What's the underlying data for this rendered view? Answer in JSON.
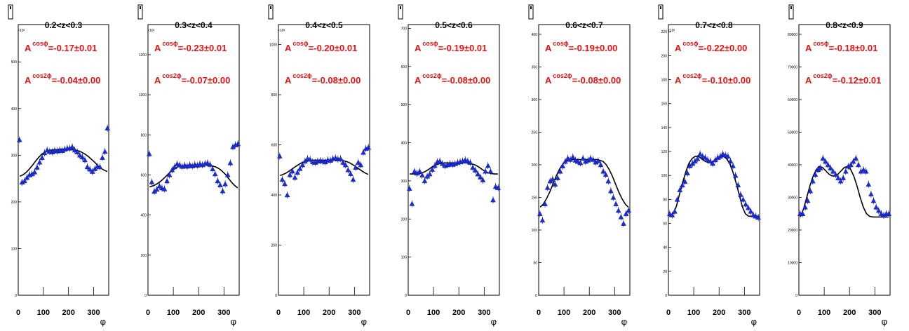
{
  "chart_data": [
    {
      "type": "scatter",
      "title": "0.2<z<0.3",
      "xlabel": "φ",
      "xticks": [
        "0",
        "100",
        "200",
        "300"
      ],
      "ymultiplier": "×10³",
      "yticks": [
        "0",
        "100",
        "200",
        "300",
        "400",
        "500"
      ],
      "yticks_values": [
        0,
        100,
        200,
        300,
        400,
        500
      ],
      "ylim": [
        0,
        580
      ],
      "xlim": [
        0,
        360
      ],
      "annotation": {
        "a_cos_label": "A",
        "a_cos_sup": "cosϕ",
        "a_cos_value": "=-0.17±0.01",
        "a_cos2_label": "A",
        "a_cos2_sup": "cos2ϕ",
        "a_cos2_value": "=-0.04±0.00"
      },
      "x": [
        5,
        15,
        25,
        35,
        45,
        55,
        65,
        75,
        85,
        95,
        105,
        115,
        125,
        135,
        145,
        155,
        165,
        175,
        185,
        195,
        205,
        215,
        225,
        235,
        245,
        255,
        265,
        275,
        285,
        295,
        305,
        315,
        325,
        335,
        345,
        355
      ],
      "y": [
        333,
        242,
        245,
        252,
        258,
        260,
        264,
        274,
        285,
        295,
        305,
        311,
        308,
        307,
        310,
        309,
        311,
        310,
        313,
        315,
        315,
        318,
        311,
        307,
        300,
        296,
        290,
        275,
        270,
        265,
        271,
        276,
        275,
        295,
        308,
        358
      ],
      "fit": [
        255,
        258,
        263,
        270,
        278,
        287,
        295,
        302,
        307,
        310,
        311,
        312,
        312,
        313,
        313,
        313,
        313,
        312,
        311,
        309,
        306,
        302,
        297,
        291,
        285,
        278,
        272,
        268,
        265
      ]
    },
    {
      "type": "scatter",
      "title": "0.3<z<0.4",
      "xlabel": "φ",
      "xticks": [
        "0",
        "100",
        "200",
        "300"
      ],
      "ymultiplier": "×10³",
      "yticks": [
        "0",
        "200",
        "400",
        "600",
        "800",
        "1000",
        "1200"
      ],
      "yticks_values": [
        0,
        200,
        400,
        600,
        800,
        1000,
        1200
      ],
      "ylim": [
        0,
        1350
      ],
      "xlim": [
        0,
        360
      ],
      "annotation": {
        "a_cos_label": "A",
        "a_cos_sup": "cosϕ",
        "a_cos_value": "=-0.23±0.01",
        "a_cos2_label": "A",
        "a_cos2_sup": "cos2ϕ",
        "a_cos2_value": "=-0.07±0.00"
      },
      "x": [
        5,
        15,
        25,
        35,
        45,
        55,
        65,
        75,
        85,
        95,
        105,
        115,
        125,
        135,
        145,
        155,
        165,
        175,
        185,
        195,
        205,
        215,
        225,
        235,
        245,
        255,
        265,
        275,
        285,
        295,
        305,
        315,
        325,
        335,
        345,
        355
      ],
      "y": [
        705,
        565,
        518,
        528,
        545,
        535,
        530,
        570,
        600,
        625,
        640,
        655,
        650,
        642,
        648,
        643,
        650,
        645,
        652,
        648,
        655,
        650,
        657,
        660,
        652,
        630,
        605,
        570,
        550,
        520,
        555,
        600,
        660,
        740,
        750,
        755
      ],
      "fit": [
        540,
        545,
        552,
        562,
        575,
        590,
        605,
        620,
        632,
        640,
        645,
        647,
        648,
        649,
        649,
        650,
        650,
        650,
        649,
        648,
        645,
        640,
        632,
        620,
        605,
        585,
        565,
        548,
        535
      ]
    },
    {
      "type": "scatter",
      "title": "0.4<z<0.5",
      "xlabel": "φ",
      "xticks": [
        "0",
        "100",
        "200",
        "300"
      ],
      "ymultiplier": "×10³",
      "yticks": [
        "0",
        "200",
        "400",
        "600",
        "800",
        "1000"
      ],
      "yticks_values": [
        0,
        200,
        400,
        600,
        800,
        1000
      ],
      "ylim": [
        0,
        1080
      ],
      "xlim": [
        0,
        360
      ],
      "annotation": {
        "a_cos_label": "A",
        "a_cos_sup": "cosϕ",
        "a_cos_value": "=-0.20±0.01",
        "a_cos2_label": "A",
        "a_cos2_sup": "cos2ϕ",
        "a_cos2_value": "=-0.08±0.00"
      },
      "x": [
        5,
        15,
        25,
        35,
        45,
        55,
        65,
        75,
        85,
        95,
        105,
        115,
        125,
        135,
        145,
        155,
        165,
        175,
        185,
        195,
        205,
        215,
        225,
        235,
        245,
        255,
        265,
        275,
        285,
        295,
        305,
        315,
        325,
        335,
        345,
        355
      ],
      "y": [
        555,
        462,
        445,
        400,
        480,
        495,
        470,
        490,
        505,
        520,
        535,
        545,
        542,
        532,
        530,
        535,
        537,
        535,
        532,
        540,
        538,
        545,
        548,
        543,
        545,
        530,
        520,
        500,
        485,
        462,
        510,
        530,
        520,
        570,
        585,
        590
      ],
      "fit": [
        478,
        482,
        488,
        496,
        505,
        514,
        522,
        529,
        534,
        537,
        538,
        539,
        539,
        539,
        539,
        539,
        539,
        539,
        539,
        538,
        537,
        534,
        529,
        522,
        514,
        505,
        496,
        488,
        482
      ]
    },
    {
      "type": "scatter",
      "title": "0.5<z<0.6",
      "xlabel": "φ",
      "xticks": [
        "0",
        "100",
        "200",
        "300"
      ],
      "ymultiplier": "",
      "yticks": [
        "0",
        "100",
        "200",
        "300",
        "400",
        "500",
        "600",
        "700"
      ],
      "yticks_values": [
        0,
        100,
        200,
        300,
        400,
        500,
        600,
        700
      ],
      "ylim": [
        0,
        710
      ],
      "xlim": [
        0,
        360
      ],
      "annotation": {
        "a_cos_label": "A",
        "a_cos_sup": "cosϕ",
        "a_cos_value": "=-0.19±0.01",
        "a_cos2_label": "A",
        "a_cos2_sup": "cos2ϕ",
        "a_cos2_value": "=-0.08±0.00"
      },
      "x": [
        5,
        15,
        25,
        35,
        45,
        55,
        65,
        75,
        85,
        95,
        105,
        115,
        125,
        135,
        145,
        155,
        165,
        175,
        185,
        195,
        205,
        215,
        225,
        235,
        245,
        255,
        265,
        275,
        285,
        295,
        305,
        315,
        325,
        335,
        345,
        355
      ],
      "y": [
        280,
        240,
        325,
        320,
        325,
        315,
        300,
        312,
        318,
        330,
        340,
        350,
        352,
        345,
        340,
        342,
        345,
        343,
        345,
        348,
        350,
        352,
        355,
        352,
        348,
        335,
        328,
        318,
        310,
        302,
        325,
        340,
        325,
        250,
        285,
        282
      ],
      "fit": [
        318,
        318,
        318,
        319,
        321,
        325,
        330,
        336,
        341,
        344,
        346,
        347,
        347,
        347,
        347,
        347,
        347,
        347,
        347,
        346,
        344,
        341,
        336,
        330,
        325,
        321,
        319,
        318,
        318
      ]
    },
    {
      "type": "scatter",
      "title": "0.6<z<0.7",
      "xlabel": "φ",
      "xticks": [
        "0",
        "100",
        "200",
        "300"
      ],
      "ymultiplier": "",
      "yticks": [
        "0",
        "50",
        "100",
        "150",
        "200",
        "250",
        "300",
        "350",
        "400"
      ],
      "yticks_values": [
        0,
        50,
        100,
        150,
        200,
        250,
        300,
        350,
        400
      ],
      "ylim": [
        0,
        415
      ],
      "xlim": [
        0,
        360
      ],
      "annotation": {
        "a_cos_label": "A",
        "a_cos_sup": "cosϕ",
        "a_cos_value": "=-0.19±0.00",
        "a_cos2_label": "A",
        "a_cos2_sup": "cos2ϕ",
        "a_cos2_value": "=-0.08±0.00"
      },
      "x": [
        5,
        15,
        25,
        35,
        45,
        55,
        65,
        75,
        85,
        95,
        105,
        115,
        125,
        135,
        145,
        155,
        165,
        175,
        185,
        195,
        205,
        215,
        225,
        235,
        245,
        255,
        265,
        275,
        285,
        295,
        305,
        315,
        325,
        335,
        345,
        355
      ],
      "y": [
        125,
        115,
        140,
        165,
        175,
        178,
        170,
        180,
        190,
        198,
        205,
        210,
        208,
        212,
        207,
        205,
        203,
        210,
        205,
        207,
        210,
        208,
        204,
        206,
        200,
        190,
        185,
        175,
        160,
        150,
        140,
        130,
        120,
        110,
        125,
        130
      ],
      "fit": [
        135,
        140,
        148,
        158,
        170,
        182,
        192,
        200,
        205,
        207,
        208,
        208,
        208,
        208,
        208,
        208,
        208,
        208,
        208,
        207,
        205,
        200,
        192,
        182,
        170,
        158,
        148,
        140,
        135
      ]
    },
    {
      "type": "scatter",
      "title": "0.7<z<0.8",
      "xlabel": "φ",
      "xticks": [
        "0",
        "100",
        "200",
        "300"
      ],
      "ymultiplier": "×10³",
      "yticks": [
        "0",
        "20",
        "40",
        "60",
        "80",
        "100",
        "120",
        "140",
        "160",
        "180",
        "200",
        "220"
      ],
      "yticks_values": [
        0,
        20,
        40,
        60,
        80,
        100,
        120,
        140,
        160,
        180,
        200,
        220
      ],
      "ylim": [
        0,
        226
      ],
      "xlim": [
        0,
        360
      ],
      "annotation": {
        "a_cos_label": "A",
        "a_cos_sup": "cosϕ",
        "a_cos_value": "=-0.22±0.00",
        "a_cos2_label": "A",
        "a_cos2_sup": "cos2ϕ",
        "a_cos2_value": "=-0.10±0.00"
      },
      "x": [
        5,
        15,
        25,
        35,
        45,
        55,
        65,
        75,
        85,
        95,
        105,
        115,
        125,
        135,
        145,
        155,
        165,
        175,
        185,
        195,
        205,
        215,
        225,
        235,
        245,
        255,
        265,
        275,
        285,
        295,
        305,
        315,
        325,
        335,
        345,
        355
      ],
      "y": [
        68,
        67,
        70,
        80,
        88,
        92,
        95,
        102,
        108,
        110,
        112,
        114,
        118,
        116,
        115,
        113,
        112,
        110,
        113,
        115,
        116,
        118,
        117,
        116,
        112,
        108,
        100,
        92,
        84,
        80,
        76,
        73,
        70,
        67,
        66,
        65
      ],
      "fit": [
        66,
        68,
        74,
        84,
        94,
        103,
        110,
        114,
        116,
        116,
        114,
        112,
        111,
        111,
        112,
        114,
        116,
        116,
        114,
        110,
        103,
        94,
        84,
        74,
        68,
        66,
        66,
        66,
        66
      ]
    },
    {
      "type": "scatter",
      "title": "0.8<z<0.9",
      "xlabel": "φ",
      "xticks": [
        "0",
        "100",
        "200",
        "300"
      ],
      "ymultiplier": "",
      "yticks": [
        "0",
        "10000",
        "20000",
        "30000",
        "40000",
        "50000",
        "60000",
        "70000",
        "80000"
      ],
      "yticks_values": [
        0,
        10000,
        20000,
        30000,
        40000,
        50000,
        60000,
        70000,
        80000
      ],
      "ylim": [
        0,
        83000
      ],
      "xlim": [
        0,
        360
      ],
      "annotation": {
        "a_cos_label": "A",
        "a_cos_sup": "cosϕ",
        "a_cos_value": "=-0.18±0.01",
        "a_cos2_label": "A",
        "a_cos2_sup": "cos2ϕ",
        "a_cos2_value": "=-0.12±0.01"
      },
      "x": [
        5,
        15,
        25,
        35,
        45,
        55,
        65,
        75,
        85,
        95,
        105,
        115,
        125,
        135,
        145,
        155,
        165,
        175,
        185,
        195,
        205,
        215,
        225,
        235,
        245,
        255,
        265,
        275,
        285,
        295,
        305,
        315,
        325,
        335,
        345,
        355
      ],
      "y": [
        25000,
        25000,
        27000,
        29000,
        32000,
        35000,
        37000,
        38500,
        39000,
        42000,
        41000,
        40000,
        39000,
        38000,
        37000,
        36000,
        35000,
        36000,
        38000,
        39500,
        40000,
        41000,
        42000,
        40000,
        38000,
        38500,
        38000,
        34000,
        31000,
        29000,
        27000,
        26000,
        25000,
        24500,
        25000,
        25000
      ],
      "fit": [
        24000,
        26500,
        30000,
        33500,
        36500,
        38500,
        39500,
        39200,
        38200,
        37200,
        36600,
        36600,
        37200,
        38200,
        39200,
        39500,
        38500,
        36500,
        33500,
        30000,
        27000,
        25000,
        24200,
        24000,
        24000,
        24000,
        24000,
        24000,
        24000
      ]
    }
  ]
}
